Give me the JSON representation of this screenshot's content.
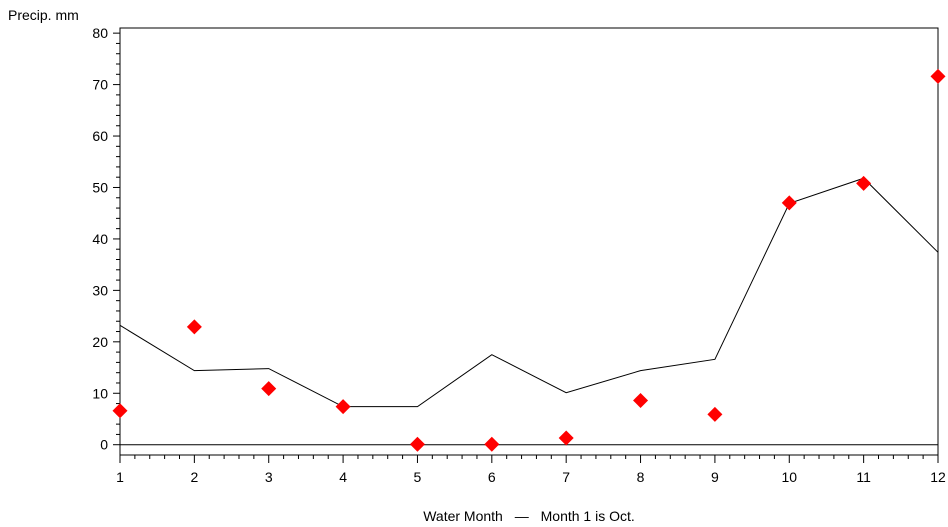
{
  "chart_data": {
    "type": "scatter",
    "title": "",
    "ylabel": "Precip. mm",
    "xlabel": "Water Month",
    "xlabel_suffix": "Month 1 is Oct.",
    "xlim": [
      1,
      12
    ],
    "ylim": [
      -2,
      81
    ],
    "xticks": [
      1,
      2,
      3,
      4,
      5,
      6,
      7,
      8,
      9,
      10,
      11,
      12
    ],
    "yticks": [
      0,
      10,
      20,
      30,
      40,
      50,
      60,
      70,
      80
    ],
    "grid": false,
    "legend": "none",
    "reference_line_y": 0,
    "series": [
      {
        "kind": "line",
        "color": "#000000",
        "x": [
          1,
          2,
          3,
          4,
          5,
          6,
          7,
          8,
          9,
          10,
          11,
          12
        ],
        "y": [
          23.2,
          14.4,
          14.8,
          7.4,
          7.4,
          17.5,
          10.1,
          14.4,
          16.6,
          46.9,
          51.8,
          37.4
        ]
      },
      {
        "kind": "markers",
        "marker": "diamond",
        "color": "#ff0000",
        "x": [
          1,
          2,
          3,
          4,
          5,
          6,
          7,
          8,
          9,
          10,
          11,
          12
        ],
        "y": [
          6.6,
          22.9,
          10.9,
          7.4,
          0.1,
          0.1,
          1.3,
          8.6,
          5.9,
          47.0,
          50.8,
          71.6
        ]
      }
    ]
  }
}
